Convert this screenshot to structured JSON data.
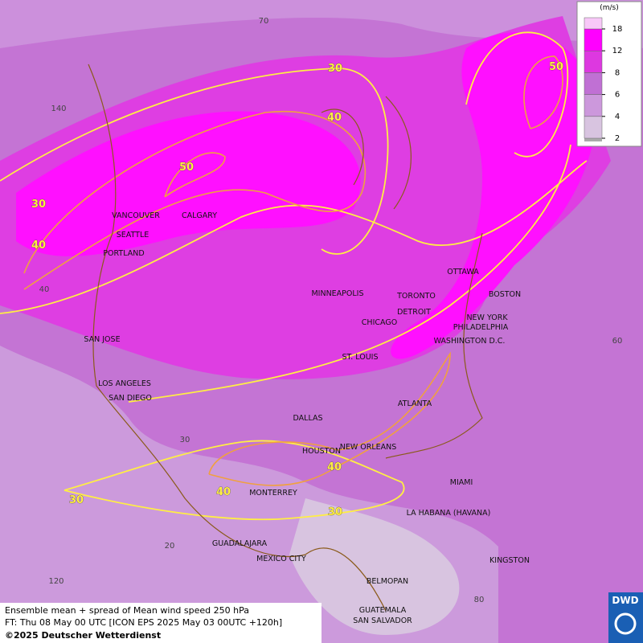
{
  "map": {
    "legend": {
      "unit": "(m/s)",
      "ticks": [
        2,
        4,
        6,
        8,
        12,
        18
      ],
      "colors": [
        "#d8c4e0",
        "#cc98dc",
        "#c070d4",
        "#dd38e0",
        "#ff00ff",
        "#f8c8f8"
      ]
    },
    "cities": [
      "VANCOUVER",
      "CALGARY",
      "SEATTLE",
      "PORTLAND",
      "MINNEAPOLIS",
      "TORONTO",
      "OTTAWA",
      "DETROIT",
      "CHICAGO",
      "BOSTON",
      "NEW YORK",
      "PHILADELPHIA",
      "WASHINGTON D.C.",
      "ST. LOUIS",
      "SAN JOSE",
      "LOS ANGELES",
      "SAN DIEGO",
      "DALLAS",
      "ATLANTA",
      "HOUSTON",
      "NEW ORLEANS",
      "MIAMI",
      "MONTERREY",
      "LA HABANA (HAVANA)",
      "GUADALAJARA",
      "MEXICO CITY",
      "KINGSTON",
      "BELMOPAN",
      "GUATEMALA",
      "SAN SALVADOR"
    ],
    "contour_labels": [
      30,
      40,
      50,
      30,
      40,
      50,
      40,
      40,
      30,
      30
    ],
    "grid_labels": [
      70,
      140,
      40,
      60,
      30,
      20,
      120,
      80
    ],
    "footer": {
      "line1": "Ensemble mean + spread of Mean wind speed 250 hPa",
      "line2": "FT: Thu 08 May 00 UTC [ICON EPS 2025 May 03 00UTC +120h]",
      "line3": "©2025 Deutscher Wetterdienst"
    },
    "logo": "DWD"
  }
}
